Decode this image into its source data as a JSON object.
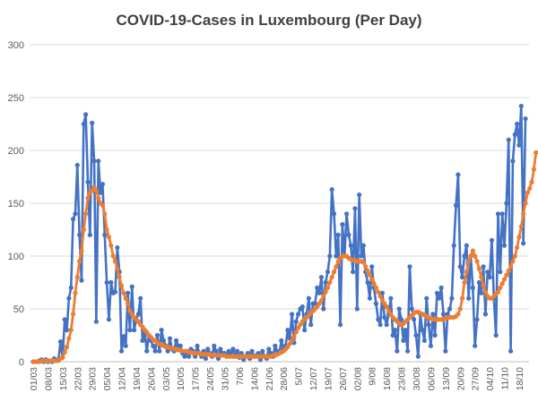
{
  "chart_data": {
    "type": "line",
    "title": "COVID-19-Cases in Luxembourg (Per Day)",
    "xlabel": "",
    "ylabel": "",
    "ylim": [
      0,
      300
    ],
    "yticks": [
      0,
      50,
      100,
      150,
      200,
      250,
      300
    ],
    "grid": true,
    "legend": "none",
    "x_start": "01/03",
    "x_labels": [
      "01/03",
      "08/03",
      "15/03",
      "22/03",
      "29/03",
      "05/04",
      "12/04",
      "19/04",
      "26/04",
      "03/05",
      "10/05",
      "17/05",
      "24/05",
      "31/05",
      "7/06",
      "14/06",
      "21/06",
      "28/06",
      "5/07",
      "12/07",
      "19/07",
      "26/07",
      "02/08",
      "9/08",
      "16/08",
      "23/08",
      "30/08",
      "06/09",
      "13/09",
      "20/09",
      "27/09",
      "04/10",
      "11/10",
      "18/10"
    ],
    "series": [
      {
        "color": "#4472c4",
        "values": [
          0,
          0,
          0,
          1,
          2,
          0,
          2,
          0,
          1,
          0,
          3,
          1,
          2,
          19,
          4,
          40,
          30,
          60,
          70,
          135,
          140,
          186,
          120,
          77,
          225,
          234,
          170,
          120,
          226,
          190,
          38,
          190,
          160,
          168,
          120,
          75,
          40,
          75,
          65,
          66,
          108,
          85,
          10,
          24,
          15,
          65,
          30,
          71,
          30,
          40,
          45,
          60,
          20,
          30,
          10,
          25,
          20,
          15,
          10,
          25,
          10,
          30,
          20,
          15,
          10,
          22,
          12,
          10,
          20,
          15,
          15,
          8,
          5,
          10,
          5,
          12,
          10,
          5,
          15,
          8,
          5,
          10,
          3,
          12,
          8,
          5,
          15,
          10,
          3,
          12,
          8,
          8,
          5,
          10,
          6,
          12,
          5,
          10,
          4,
          8,
          2,
          5,
          8,
          3,
          10,
          5,
          6,
          8,
          2,
          10,
          5,
          3,
          12,
          8,
          5,
          15,
          10,
          8,
          20,
          12,
          15,
          30,
          22,
          45,
          18,
          38,
          45,
          50,
          52,
          30,
          45,
          60,
          35,
          55,
          55,
          70,
          65,
          80,
          50,
          75,
          85,
          100,
          163,
          140,
          100,
          120,
          35,
          130,
          100,
          140,
          120,
          110,
          85,
          145,
          50,
          158,
          100,
          110,
          85,
          75,
          60,
          90,
          70,
          55,
          40,
          35,
          65,
          42,
          35,
          45,
          60,
          25,
          30,
          10,
          50,
          40,
          20,
          30,
          10,
          90,
          50,
          40,
          25,
          5,
          45,
          30,
          20,
          60,
          35,
          15,
          45,
          25,
          65,
          60,
          70,
          45,
          10,
          45,
          50,
          60,
          110,
          148,
          177,
          90,
          80,
          100,
          110,
          60,
          100,
          70,
          15,
          40,
          75,
          65,
          90,
          45,
          85,
          80,
          115,
          60,
          25,
          140,
          85,
          140,
          110,
          150,
          210,
          10,
          190,
          215,
          225,
          205,
          242,
          112,
          230
        ],
        "name": ""
      },
      {
        "color": "#ed7d31",
        "values": [
          0,
          0,
          0,
          0,
          1,
          1,
          1,
          1,
          1,
          1,
          1,
          1,
          1,
          3,
          4,
          9,
          14,
          22,
          30,
          45,
          65,
          80,
          95,
          105,
          125,
          140,
          155,
          160,
          162,
          165,
          162,
          155,
          150,
          148,
          140,
          125,
          118,
          110,
          100,
          95,
          88,
          80,
          72,
          65,
          60,
          55,
          48,
          45,
          42,
          40,
          38,
          35,
          33,
          30,
          28,
          25,
          23,
          21,
          20,
          18,
          17,
          16,
          15,
          14,
          14,
          13,
          13,
          12,
          12,
          11,
          11,
          10,
          10,
          10,
          9,
          9,
          8,
          8,
          8,
          8,
          7,
          7,
          7,
          7,
          7,
          6,
          6,
          6,
          6,
          6,
          6,
          6,
          5,
          5,
          5,
          5,
          5,
          5,
          5,
          5,
          5,
          5,
          5,
          5,
          5,
          5,
          5,
          5,
          5,
          5,
          5,
          5,
          5,
          5,
          6,
          6,
          7,
          8,
          9,
          10,
          12,
          14,
          17,
          20,
          24,
          28,
          32,
          35,
          38,
          40,
          42,
          44,
          46,
          48,
          50,
          52,
          55,
          58,
          62,
          66,
          70,
          75,
          80,
          85,
          90,
          95,
          98,
          100,
          100,
          100,
          98,
          97,
          96,
          96,
          95,
          95,
          95,
          94,
          90,
          86,
          82,
          78,
          74,
          70,
          66,
          62,
          58,
          55,
          52,
          48,
          45,
          42,
          40,
          38,
          36,
          35,
          36,
          38,
          40,
          42,
          44,
          46,
          47,
          47,
          46,
          45,
          44,
          43,
          42,
          41,
          40,
          40,
          40,
          40,
          40,
          40,
          41,
          42,
          42,
          42,
          42,
          43,
          45,
          50,
          60,
          75,
          85,
          95,
          100,
          105,
          100,
          95,
          88,
          80,
          72,
          66,
          62,
          60,
          60,
          62,
          64,
          66,
          70,
          74,
          78,
          82,
          86,
          90,
          95,
          100,
          108,
          118,
          128,
          140,
          150,
          160,
          164,
          170,
          182,
          198
        ],
        "name": ""
      }
    ]
  }
}
